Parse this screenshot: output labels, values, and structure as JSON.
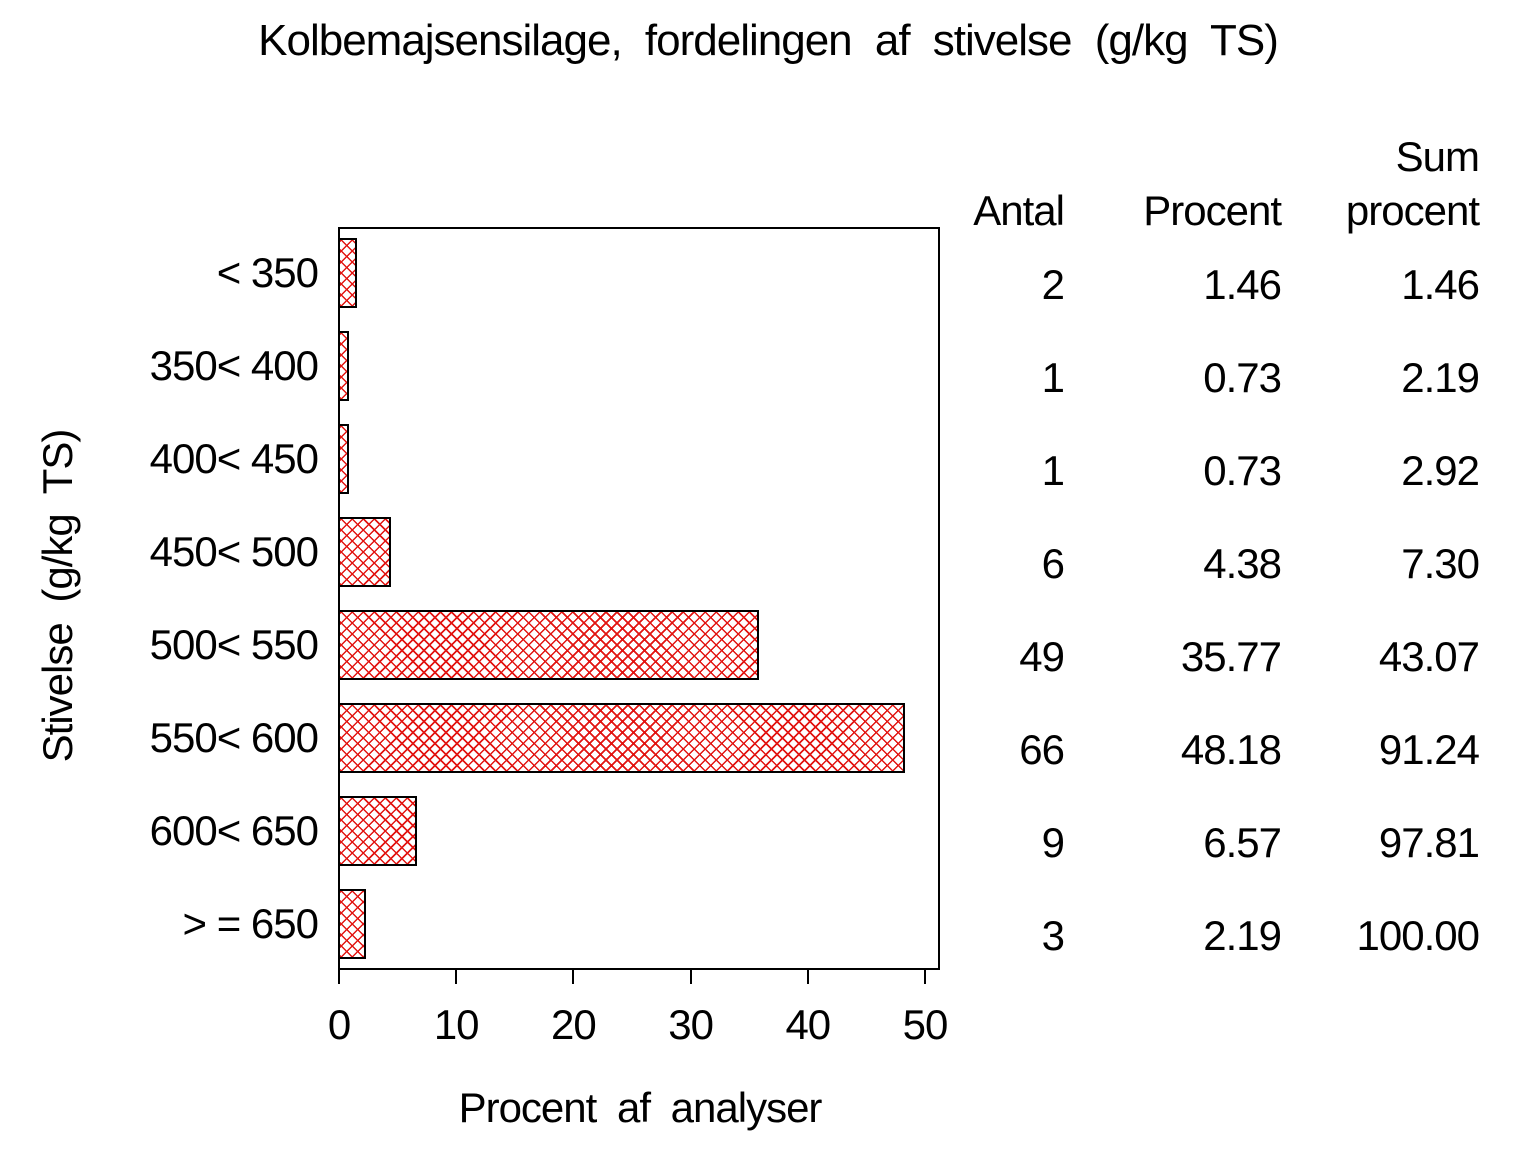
{
  "title": "Kolbemajsensilage, fordelingen af stivelse (g/kg TS)",
  "chart_data": {
    "type": "bar",
    "orientation": "horizontal",
    "title": "Kolbemajsensilage, fordelingen af stivelse (g/kg TS)",
    "categories": [
      "< 350",
      "350< 400",
      "400< 450",
      "450< 500",
      "500< 550",
      "550< 600",
      "600< 650",
      "> = 650"
    ],
    "values": [
      1.46,
      0.73,
      0.73,
      4.38,
      35.77,
      48.18,
      6.57,
      2.19
    ],
    "counts": [
      2,
      1,
      1,
      6,
      49,
      66,
      9,
      3
    ],
    "xlabel": "Procent af analyser",
    "ylabel": "Stivelse (g/kg TS)",
    "xlim": [
      0,
      50
    ],
    "xticks": [
      "0",
      "10",
      "20",
      "30",
      "40",
      "50"
    ],
    "grid": false,
    "legend_position": "none",
    "bar_fill_pattern": "crosshatch",
    "bar_hatch_color": "#e21512",
    "bar_border_color": "#000000",
    "axis_color": "#000000",
    "text_color": "#000000",
    "background_color": "#ffffff"
  },
  "table": {
    "columns": [
      "Antal",
      "Procent",
      "Sum procent"
    ],
    "rows": [
      [
        "2",
        "1.46",
        "1.46"
      ],
      [
        "1",
        "0.73",
        "2.19"
      ],
      [
        "1",
        "0.73",
        "2.92"
      ],
      [
        "6",
        "4.38",
        "7.30"
      ],
      [
        "49",
        "35.77",
        "43.07"
      ],
      [
        "66",
        "48.18",
        "91.24"
      ],
      [
        "9",
        "6.57",
        "97.81"
      ],
      [
        "3",
        "2.19",
        "100.00"
      ]
    ]
  }
}
